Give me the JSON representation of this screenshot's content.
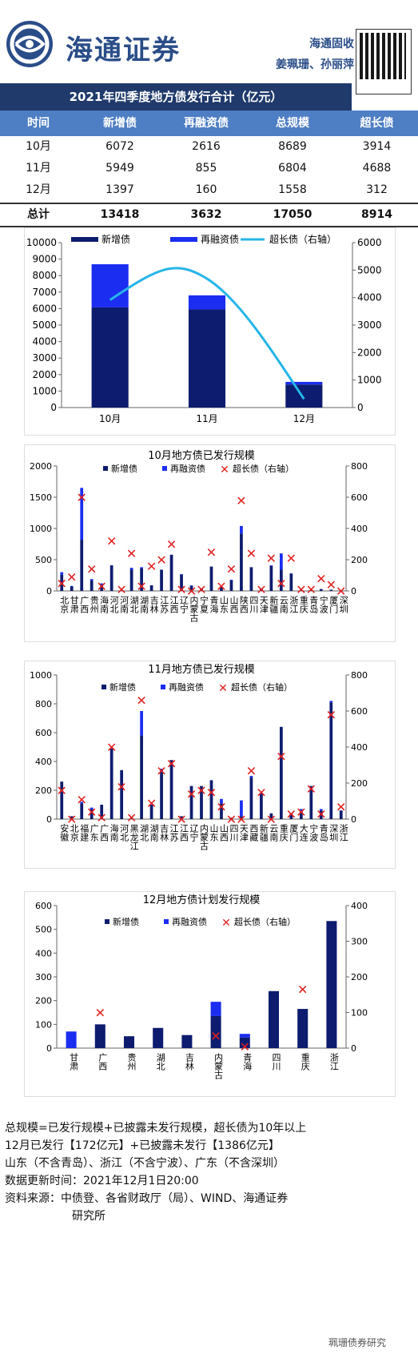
{
  "header": {
    "brand": "海通证券",
    "authors_line1": "海通固收",
    "authors_line2": "姜珮珊、孙丽萍"
  },
  "table": {
    "title": "2021年四季度地方债发行合计（亿元）",
    "headers": [
      "时间",
      "新增债",
      "再融资债",
      "总规模",
      "超长债"
    ],
    "rows": [
      [
        "10月",
        "6072",
        "2616",
        "8689",
        "3914"
      ],
      [
        "11月",
        "5949",
        "855",
        "6804",
        "4688"
      ],
      [
        "12月",
        "1397",
        "160",
        "1558",
        "312"
      ]
    ],
    "total": [
      "总计",
      "13418",
      "3632",
      "17050",
      "8914"
    ]
  },
  "colors": {
    "new": "#0d1c6e",
    "refi": "#1a2df0",
    "long_line": "#26b5e8",
    "cross": "#e02020"
  },
  "chart_data": [
    {
      "type": "bar",
      "title": "",
      "categories": [
        "10月",
        "11月",
        "12月"
      ],
      "series": [
        {
          "name": "新增债",
          "values": [
            6072,
            5949,
            1397
          ]
        },
        {
          "name": "再融资债",
          "values": [
            2616,
            855,
            160
          ]
        },
        {
          "name": "超长债（右轴）",
          "values": [
            3914,
            4688,
            312
          ],
          "axis": "right"
        }
      ],
      "ylim": [
        0,
        10000
      ],
      "y_ticks": [
        0,
        1000,
        2000,
        3000,
        4000,
        5000,
        6000,
        7000,
        8000,
        9000,
        10000
      ],
      "y2lim": [
        0,
        6000
      ],
      "y2_ticks": [
        0,
        1000,
        2000,
        3000,
        4000,
        5000,
        6000
      ],
      "legend": "top"
    },
    {
      "type": "bar",
      "title": "10月地方债已发行规模",
      "categories": [
        "北京",
        "甘肃",
        "广西",
        "贵州",
        "海南",
        "河北",
        "河南",
        "湖北",
        "湖南",
        "吉林",
        "江苏",
        "江西",
        "辽宁",
        "内蒙古",
        "宁夏",
        "青海",
        "山东",
        "山西",
        "陕西",
        "四川",
        "天津",
        "新疆",
        "云南",
        "浙江",
        "重庆",
        "青岛",
        "宁波",
        "厦门",
        "深圳"
      ],
      "series": [
        {
          "name": "新增债",
          "values": [
            260,
            70,
            820,
            170,
            90,
            410,
            10,
            340,
            360,
            90,
            340,
            580,
            260,
            80,
            40,
            390,
            70,
            170,
            920,
            380,
            40,
            400,
            340,
            280,
            10,
            10,
            30,
            20,
            0
          ]
        },
        {
          "name": "再融资债",
          "values": [
            40,
            10,
            830,
            20,
            30,
            0,
            0,
            30,
            20,
            0,
            0,
            0,
            10,
            10,
            0,
            0,
            0,
            10,
            120,
            0,
            0,
            10,
            260,
            0,
            0,
            0,
            0,
            0,
            0
          ]
        },
        {
          "name": "超长债（右轴）",
          "values": [
            50,
            90,
            600,
            140,
            30,
            320,
            10,
            240,
            30,
            160,
            200,
            300,
            10,
            0,
            10,
            250,
            30,
            140,
            580,
            240,
            10,
            210,
            50,
            210,
            10,
            10,
            80,
            40,
            0
          ],
          "axis": "right"
        }
      ],
      "ylim": [
        0,
        2000
      ],
      "y_ticks": [
        0,
        500,
        1000,
        1500,
        2000
      ],
      "y2lim": [
        0,
        800
      ],
      "y2_ticks": [
        0,
        200,
        400,
        600,
        800
      ],
      "legend": "top"
    },
    {
      "type": "bar",
      "title": "11月地方债已发行规模",
      "categories": [
        "安徽",
        "北京",
        "福建",
        "广东",
        "广西",
        "海南",
        "河北",
        "黑龙江",
        "湖北",
        "湖南",
        "吉林",
        "江苏",
        "江西",
        "辽宁",
        "内蒙古",
        "山东",
        "山西",
        "四川",
        "天津",
        "西藏",
        "新疆",
        "云南",
        "重庆",
        "厦门",
        "大连",
        "宁波",
        "青岛",
        "深圳",
        "浙江"
      ],
      "series": [
        {
          "name": "新增债",
          "values": [
            260,
            20,
            110,
            70,
            100,
            490,
            340,
            10,
            580,
            100,
            330,
            410,
            20,
            230,
            230,
            270,
            110,
            10,
            20,
            290,
            180,
            40,
            640,
            40,
            60,
            230,
            60,
            810,
            60
          ]
        },
        {
          "name": "再融资债",
          "values": [
            0,
            0,
            10,
            10,
            0,
            0,
            0,
            0,
            170,
            0,
            20,
            0,
            0,
            0,
            0,
            0,
            30,
            0,
            110,
            10,
            0,
            0,
            0,
            0,
            10,
            0,
            10,
            10,
            0
          ]
        },
        {
          "name": "超长债（右轴）",
          "values": [
            160,
            0,
            110,
            40,
            10,
            400,
            180,
            10,
            660,
            90,
            270,
            310,
            0,
            140,
            160,
            150,
            70,
            0,
            0,
            270,
            150,
            0,
            350,
            30,
            40,
            170,
            30,
            580,
            70
          ],
          "axis": "right"
        }
      ],
      "ylim": [
        0,
        1000
      ],
      "y_ticks": [
        0,
        200,
        400,
        600,
        800,
        1000
      ],
      "y2lim": [
        0,
        800
      ],
      "y2_ticks": [
        0,
        200,
        400,
        600,
        800
      ],
      "legend": "top"
    },
    {
      "type": "bar",
      "title": "12月地方债计划发行规模",
      "categories": [
        "甘肃",
        "广西",
        "贵州",
        "湖北",
        "吉林",
        "内蒙古",
        "青海",
        "四川",
        "重庆",
        "浙江"
      ],
      "series": [
        {
          "name": "新增债",
          "values": [
            0,
            100,
            50,
            85,
            55,
            135,
            45,
            240,
            165,
            535
          ]
        },
        {
          "name": "再融资债",
          "values": [
            70,
            0,
            0,
            0,
            0,
            60,
            15,
            0,
            0,
            0
          ]
        },
        {
          "name": "超长债（右轴）",
          "values": [
            null,
            100,
            null,
            null,
            null,
            35,
            5,
            null,
            165,
            null
          ],
          "axis": "right"
        }
      ],
      "ylim": [
        0,
        600
      ],
      "y_ticks": [
        0,
        100,
        200,
        300,
        400,
        500,
        600
      ],
      "y2lim": [
        0,
        400
      ],
      "y2_ticks": [
        0,
        100,
        200,
        300,
        400
      ],
      "legend": "top"
    }
  ],
  "footer": {
    "line1": "总规模=已发行规模+已披露未发行规模，超长债为10年以上",
    "line2": "12月已发行【172亿元】+已披露未发行【1386亿元】",
    "line3": "山东（不含青岛）、浙江（不含宁波）、广东（不含深圳）",
    "line4": "数据更新时间：2021年12月1日20:00",
    "line5": "资料来源：中债登、各省财政厅（局）、WIND、海通证券",
    "line6": "研究所"
  },
  "watermark": "珮珊债券研究"
}
